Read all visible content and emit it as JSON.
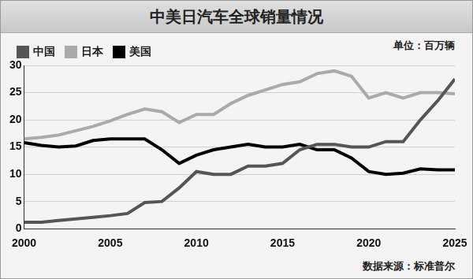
{
  "chart_data": {
    "type": "line",
    "title": "中美日汽车全球销量情况",
    "unit": "单位：百万辆",
    "source": "数据来源：标准普尔",
    "x": [
      2000,
      2001,
      2002,
      2003,
      2004,
      2005,
      2006,
      2007,
      2008,
      2009,
      2010,
      2011,
      2012,
      2013,
      2014,
      2015,
      2016,
      2017,
      2018,
      2019,
      2020,
      2021,
      2022,
      2023,
      2024,
      2025
    ],
    "series": [
      {
        "name": "中国",
        "color": "#555555",
        "values": [
          1.2,
          1.2,
          1.5,
          1.8,
          2.1,
          2.4,
          2.8,
          4.8,
          5.0,
          7.5,
          10.5,
          10.0,
          10.0,
          11.5,
          11.5,
          12.0,
          14.5,
          15.5,
          15.5,
          15.0,
          15.0,
          16.0,
          16.0,
          20.0,
          23.5,
          27.5
        ]
      },
      {
        "name": "日本",
        "color": "#aaaaaa",
        "values": [
          16.5,
          16.8,
          17.2,
          18.0,
          18.8,
          19.8,
          21.0,
          22.0,
          21.5,
          19.5,
          21.0,
          21.0,
          23.0,
          24.5,
          25.5,
          26.5,
          27.0,
          28.5,
          29.0,
          28.0,
          24.0,
          25.0,
          24.0,
          25.0,
          25.0,
          24.8
        ]
      },
      {
        "name": "美国",
        "color": "#000000",
        "values": [
          15.8,
          15.3,
          15.0,
          15.2,
          16.2,
          16.5,
          16.5,
          16.5,
          14.5,
          12.0,
          13.5,
          14.5,
          15.0,
          15.5,
          15.0,
          15.0,
          15.5,
          14.5,
          14.5,
          13.0,
          10.5,
          10.0,
          10.2,
          11.0,
          10.8,
          10.8
        ]
      }
    ],
    "xlim": [
      2000,
      2025
    ],
    "xticks": [
      2000,
      2005,
      2010,
      2015,
      2020,
      2025
    ],
    "ylim": [
      0,
      30
    ],
    "yticks": [
      0,
      5,
      10,
      15,
      20,
      25,
      30
    ],
    "grid": true,
    "legend": "top-left"
  }
}
